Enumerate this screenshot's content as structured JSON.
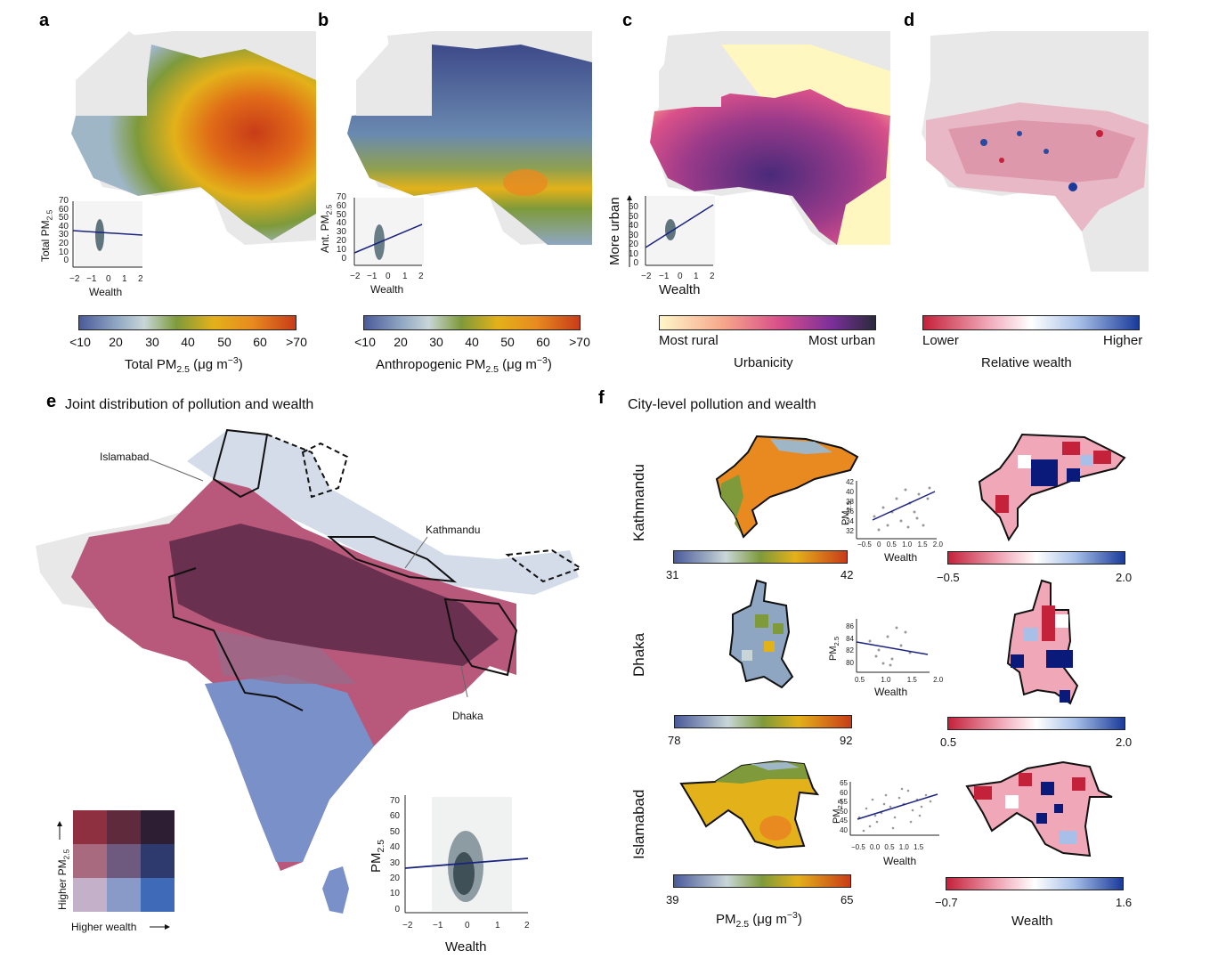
{
  "panels": {
    "a": {
      "label": "a",
      "inset_ylabel": "Total PM",
      "inset_ylabel_sub": "2.5",
      "inset_xlabel": "Wealth",
      "inset_yticks": [
        "70",
        "60",
        "50",
        "40",
        "30",
        "20",
        "10",
        "0"
      ],
      "inset_xticks": [
        "−2",
        "−1",
        "0",
        "1",
        "2"
      ],
      "cbar_ticks": [
        "<10",
        "20",
        "30",
        "40",
        "50",
        "60",
        ">70"
      ],
      "cbar_title": "Total PM",
      "cbar_title_sub": "2.5",
      "cbar_title_unit": " (μg m",
      "cbar_title_sup": "−3",
      "cbar_title_close": ")"
    },
    "b": {
      "label": "b",
      "inset_ylabel": "Ant. PM",
      "inset_ylabel_sub": "2.5",
      "inset_xlabel": "Wealth",
      "inset_yticks": [
        "70",
        "60",
        "50",
        "40",
        "30",
        "20",
        "10",
        "0"
      ],
      "inset_xticks": [
        "−2",
        "−1",
        "0",
        "1",
        "2"
      ],
      "cbar_ticks": [
        "<10",
        "20",
        "30",
        "40",
        "50",
        "60",
        ">70"
      ],
      "cbar_title": "Anthropogenic PM",
      "cbar_title_sub": "2.5",
      "cbar_title_unit": " (μg m",
      "cbar_title_sup": "−3",
      "cbar_title_close": ")"
    },
    "c": {
      "label": "c",
      "inset_ylabel": "More urban",
      "inset_xlabel": "Wealth",
      "inset_yticks": [
        "60",
        "50",
        "40",
        "30",
        "20",
        "10",
        "0"
      ],
      "inset_xticks": [
        "−2",
        "−1",
        "0",
        "1",
        "2"
      ],
      "cbar_left": "Most rural",
      "cbar_right": "Most urban",
      "cbar_title": "Urbanicity"
    },
    "d": {
      "label": "d",
      "cbar_left": "Lower",
      "cbar_right": "Higher",
      "cbar_title": "Relative wealth"
    },
    "e": {
      "label": "e",
      "title": "Joint distribution of pollution and wealth",
      "annotations": {
        "islamabad": "Islamabad",
        "kathmandu": "Kathmandu",
        "dhaka": "Dhaka"
      },
      "legend_ylabel": "Higher PM",
      "legend_ylabel_sub": "2.5",
      "legend_xlabel": "Higher wealth",
      "inset_ylabel": "PM",
      "inset_ylabel_sub": "2.5",
      "inset_xlabel": "Wealth",
      "inset_yticks": [
        "70",
        "60",
        "50",
        "40",
        "30",
        "20",
        "10",
        "0"
      ],
      "inset_xticks": [
        "−2",
        "−1",
        "0",
        "1",
        "2"
      ]
    },
    "f": {
      "label": "f",
      "title": "City-level pollution and wealth",
      "cities": [
        {
          "name": "Kathmandu",
          "pm_min": "31",
          "pm_max": "42",
          "w_min": "−0.5",
          "w_max": "2.0",
          "yticks": [
            "42",
            "40",
            "38",
            "36",
            "34",
            "32"
          ],
          "xticks": [
            "−0.5",
            "0",
            "0.5",
            "1.0",
            "1.5",
            "2.0"
          ]
        },
        {
          "name": "Dhaka",
          "pm_min": "78",
          "pm_max": "92",
          "w_min": "0.5",
          "w_max": "2.0",
          "yticks": [
            "86",
            "84",
            "82",
            "80"
          ],
          "xticks": [
            "0.5",
            "1.0",
            "1.5",
            "2.0"
          ]
        },
        {
          "name": "Islamabad",
          "pm_min": "39",
          "pm_max": "65",
          "w_min": "−0.7",
          "w_max": "1.6",
          "yticks": [
            "65",
            "60",
            "55",
            "50",
            "45",
            "40"
          ],
          "xticks": [
            "−0.5",
            "0.0",
            "0.5",
            "1.0",
            "1.5"
          ]
        }
      ],
      "scatter_ylabel": "PM",
      "scatter_ylabel_sub": "2.5",
      "scatter_xlabel": "Wealth",
      "bottom_pm_label": "PM",
      "bottom_pm_sub": "2.5",
      "bottom_pm_unit": " (μg m",
      "bottom_pm_sup": "−3",
      "bottom_pm_close": ")",
      "bottom_wealth_label": "Wealth"
    }
  },
  "colors": {
    "pm_scale": [
      "#4a5a9a",
      "#8fa6c2",
      "#c9d6d8",
      "#7e9a3a",
      "#e3b11a",
      "#e88a20",
      "#c83c18"
    ],
    "urban_scale": [
      "#fff6c8",
      "#f6a58a",
      "#d9508a",
      "#7a2f9a",
      "#2a2a3a"
    ],
    "wealth_scale": [
      "#c4213a",
      "#f0a8b8",
      "#ffffff",
      "#a8c0e8",
      "#1a3a9a"
    ],
    "bivariate": [
      "#8e3040",
      "#5e2a3c",
      "#2e1e34",
      "#a86a7e",
      "#6e5a7e",
      "#2e3a6e",
      "#c4b0c8",
      "#8a9ac8",
      "#3e6ab8"
    ],
    "regression_line": "#1a237e",
    "land_grey": "#e8e8e8"
  }
}
